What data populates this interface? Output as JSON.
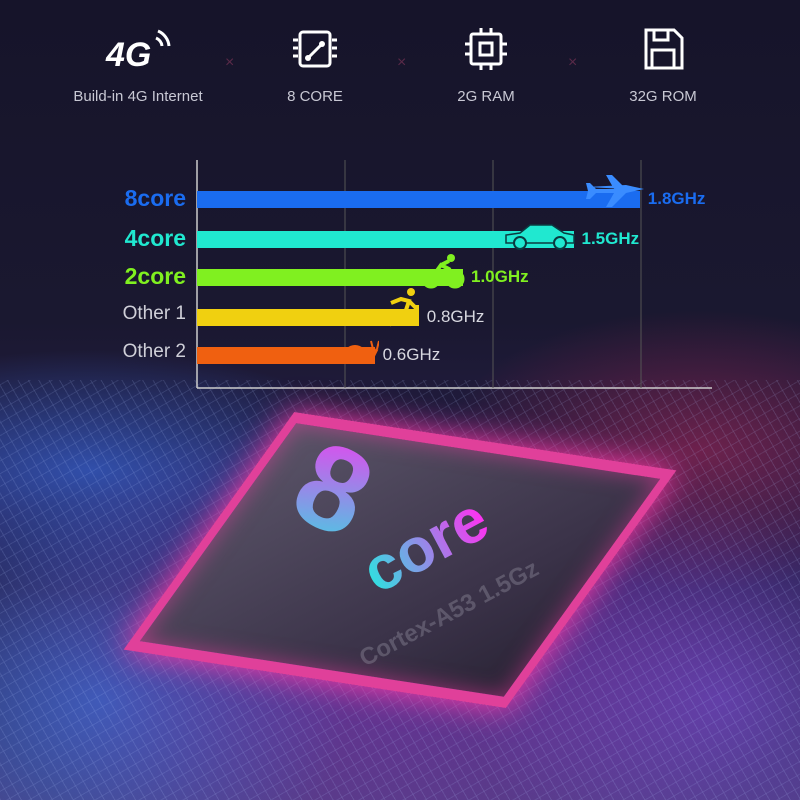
{
  "features": [
    {
      "icon": "4g-signal-icon",
      "label": "Build-in 4G Internet",
      "icon_text": "4G"
    },
    {
      "icon": "processor-board-icon",
      "label": "8 CORE"
    },
    {
      "icon": "cpu-chip-icon",
      "label": "2G RAM"
    },
    {
      "icon": "floppy-disk-icon",
      "label": "32G ROM"
    }
  ],
  "separator": "×",
  "chart_data": {
    "type": "bar",
    "orientation": "horizontal",
    "categories": [
      "8core",
      "4core",
      "2core",
      "Other 1",
      "Other 2"
    ],
    "values": [
      1.8,
      1.5,
      1.0,
      0.8,
      0.6
    ],
    "value_labels": [
      "1.8GHz",
      "1.5GHz",
      "1.0GHz",
      "0.8GHz",
      "0.6GHz"
    ],
    "unit": "GHz",
    "colors": [
      "#1a6cf0",
      "#20e8d0",
      "#80f020",
      "#f0d010",
      "#f06010"
    ],
    "icons": [
      "jet-plane-icon",
      "car-icon",
      "cyclist-icon",
      "runner-icon",
      "snail-icon"
    ],
    "grid": true
  },
  "chip": {
    "big_number": "8",
    "word": "core",
    "model": "Cortex-A53 1.5Gz"
  }
}
